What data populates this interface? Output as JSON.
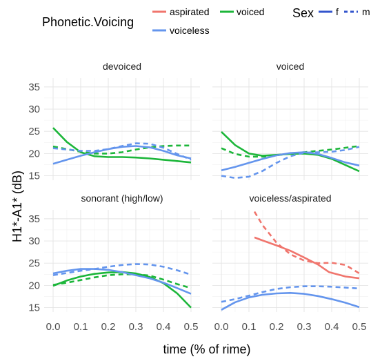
{
  "chart_data": {
    "type": "line",
    "xlabel": "time (% of rime)",
    "ylabel": "H1*-A1* (dB)",
    "xlim": [
      0,
      0.5
    ],
    "ylim": [
      14,
      37
    ],
    "x_ticks": [
      "0.0",
      "0.1",
      "0.2",
      "0.3",
      "0.4",
      "0.5"
    ],
    "y_ticks": [
      "15",
      "20",
      "25",
      "30",
      "35"
    ],
    "grid": true,
    "colors": {
      "aspirated": "#f0756d",
      "voiced": "#1cb63a",
      "voiceless": "#6495ed"
    },
    "legend": {
      "placement": "top",
      "voicing_title": "Phonetic.Voicing",
      "voicing_entries": [
        "aspirated",
        "voiced",
        "voiceless"
      ],
      "sex_title": "Sex",
      "sex_entries": [
        "f",
        "m"
      ]
    },
    "panels": [
      {
        "title": "devoiced",
        "series": [
          {
            "voicing": "voiced",
            "sex": "f",
            "x": [
              0,
              0.05,
              0.1,
              0.15,
              0.2,
              0.25,
              0.3,
              0.35,
              0.4,
              0.45,
              0.5
            ],
            "y": [
              25.8,
              22.6,
              20.3,
              19.4,
              19.2,
              19.2,
              19.1,
              18.9,
              18.6,
              18.3,
              18.0
            ]
          },
          {
            "voicing": "voiced",
            "sex": "m",
            "x": [
              0,
              0.05,
              0.1,
              0.15,
              0.2,
              0.25,
              0.3,
              0.35,
              0.4,
              0.45,
              0.5
            ],
            "y": [
              21.6,
              21.0,
              20.4,
              20.0,
              20.0,
              20.3,
              20.9,
              21.4,
              21.7,
              21.8,
              21.8
            ]
          },
          {
            "voicing": "voiceless",
            "sex": "f",
            "x": [
              0,
              0.05,
              0.1,
              0.15,
              0.2,
              0.25,
              0.3,
              0.35,
              0.4,
              0.45,
              0.5
            ],
            "y": [
              17.7,
              18.6,
              19.5,
              20.3,
              21.0,
              21.5,
              21.7,
              21.4,
              20.6,
              19.6,
              18.9
            ]
          },
          {
            "voicing": "voiceless",
            "sex": "m",
            "x": [
              0,
              0.05,
              0.1,
              0.15,
              0.2,
              0.25,
              0.3,
              0.35,
              0.4,
              0.45,
              0.5
            ],
            "y": [
              21.2,
              20.9,
              20.6,
              20.6,
              21.0,
              21.7,
              22.3,
              22.2,
              21.3,
              19.9,
              18.6
            ]
          }
        ]
      },
      {
        "title": "voiced",
        "series": [
          {
            "voicing": "voiced",
            "sex": "f",
            "x": [
              0,
              0.05,
              0.1,
              0.15,
              0.2,
              0.25,
              0.3,
              0.35,
              0.4,
              0.45,
              0.5
            ],
            "y": [
              24.9,
              21.9,
              20.0,
              19.5,
              19.7,
              19.9,
              20.0,
              19.7,
              18.8,
              17.4,
              16.0
            ]
          },
          {
            "voicing": "voiced",
            "sex": "m",
            "x": [
              0,
              0.05,
              0.1,
              0.15,
              0.2,
              0.25,
              0.3,
              0.35,
              0.4,
              0.45,
              0.5
            ],
            "y": [
              21.2,
              19.9,
              19.3,
              19.3,
              19.6,
              20.0,
              20.3,
              20.6,
              20.9,
              21.3,
              21.7
            ]
          },
          {
            "voicing": "voiceless",
            "sex": "f",
            "x": [
              0,
              0.05,
              0.1,
              0.15,
              0.2,
              0.25,
              0.3,
              0.35,
              0.4,
              0.45,
              0.5
            ],
            "y": [
              16.2,
              17.0,
              17.9,
              18.8,
              19.6,
              20.1,
              20.3,
              19.9,
              19.0,
              18.0,
              17.3
            ]
          },
          {
            "voicing": "voiceless",
            "sex": "m",
            "x": [
              0,
              0.05,
              0.1,
              0.15,
              0.2,
              0.25,
              0.3,
              0.35,
              0.4,
              0.45,
              0.5
            ],
            "y": [
              15.0,
              14.5,
              14.8,
              16.1,
              17.9,
              19.4,
              20.2,
              20.3,
              20.4,
              20.8,
              21.5
            ]
          }
        ]
      },
      {
        "title": "sonorant (high/low)",
        "series": [
          {
            "voicing": "voiced",
            "sex": "f",
            "x": [
              0,
              0.05,
              0.1,
              0.15,
              0.2,
              0.25,
              0.3,
              0.35,
              0.4,
              0.45,
              0.5
            ],
            "y": [
              19.9,
              21.1,
              22.0,
              22.6,
              22.9,
              23.0,
              22.7,
              21.9,
              20.5,
              18.2,
              15.0
            ]
          },
          {
            "voicing": "voiced",
            "sex": "m",
            "x": [
              0,
              0.05,
              0.1,
              0.15,
              0.2,
              0.25,
              0.3,
              0.35,
              0.4,
              0.45,
              0.5
            ],
            "y": [
              20.1,
              20.6,
              21.2,
              21.8,
              22.3,
              22.5,
              22.5,
              22.2,
              21.3,
              20.3,
              19.4
            ]
          },
          {
            "voicing": "voiceless",
            "sex": "f",
            "x": [
              0,
              0.05,
              0.1,
              0.15,
              0.2,
              0.25,
              0.3,
              0.35,
              0.4,
              0.45,
              0.5
            ],
            "y": [
              22.7,
              23.3,
              23.7,
              23.7,
              23.5,
              23.0,
              22.3,
              21.6,
              20.6,
              19.4,
              18.1
            ]
          },
          {
            "voicing": "voiceless",
            "sex": "m",
            "x": [
              0,
              0.05,
              0.1,
              0.15,
              0.2,
              0.25,
              0.3,
              0.35,
              0.4,
              0.45,
              0.5
            ],
            "y": [
              22.3,
              22.8,
              23.3,
              23.7,
              24.2,
              24.6,
              24.8,
              24.7,
              24.2,
              23.4,
              22.4
            ]
          }
        ]
      },
      {
        "title": "voiceless/aspirated",
        "series": [
          {
            "voicing": "aspirated",
            "sex": "f",
            "x": [
              0.12,
              0.15,
              0.2,
              0.25,
              0.3,
              0.35,
              0.39,
              0.45,
              0.5
            ],
            "y": [
              30.8,
              30.1,
              29.0,
              27.8,
              26.3,
              24.7,
              23.0,
              22.0,
              21.6
            ]
          },
          {
            "voicing": "aspirated",
            "sex": "m",
            "x": [
              0.12,
              0.15,
              0.2,
              0.25,
              0.3,
              0.35,
              0.4,
              0.45,
              0.5
            ],
            "y": [
              36.6,
              33.5,
              29.6,
              27.0,
              25.6,
              25.0,
              25.1,
              24.6,
              22.7
            ]
          },
          {
            "voicing": "voiceless",
            "sex": "f",
            "x": [
              0,
              0.05,
              0.1,
              0.15,
              0.2,
              0.25,
              0.3,
              0.35,
              0.4,
              0.45,
              0.5
            ],
            "y": [
              14.5,
              16.2,
              17.3,
              17.9,
              18.2,
              18.3,
              18.1,
              17.6,
              16.9,
              16.1,
              15.1
            ]
          },
          {
            "voicing": "voiceless",
            "sex": "m",
            "x": [
              0,
              0.05,
              0.1,
              0.15,
              0.2,
              0.25,
              0.3,
              0.35,
              0.4,
              0.45,
              0.5
            ],
            "y": [
              16.3,
              16.9,
              17.7,
              18.5,
              19.2,
              19.6,
              19.8,
              19.8,
              19.7,
              19.5,
              19.3
            ]
          }
        ]
      }
    ]
  }
}
